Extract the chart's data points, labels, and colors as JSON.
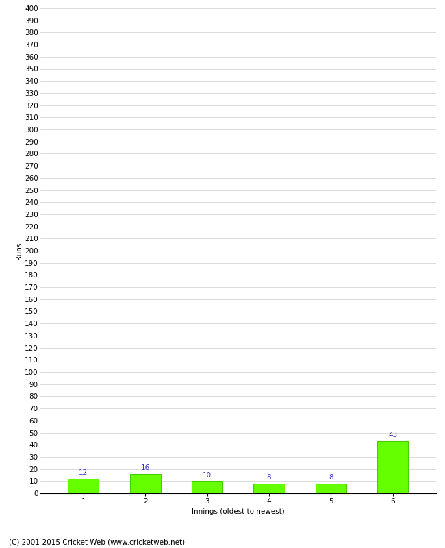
{
  "categories": [
    "1",
    "2",
    "3",
    "4",
    "5",
    "6"
  ],
  "values": [
    12,
    16,
    10,
    8,
    8,
    43
  ],
  "bar_color": "#66ff00",
  "bar_edge_color": "#44cc00",
  "label_color": "#3333cc",
  "xlabel": "Innings (oldest to newest)",
  "ylabel": "Runs",
  "ylim": [
    0,
    400
  ],
  "ytick_step": 10,
  "background_color": "#ffffff",
  "grid_color": "#cccccc",
  "footer": "(C) 2001-2015 Cricket Web (www.cricketweb.net)",
  "label_fontsize": 7.5,
  "axis_fontsize": 7.5,
  "footer_fontsize": 7.5,
  "ylabel_fontsize": 7.5,
  "xlabel_fontsize": 7.5
}
